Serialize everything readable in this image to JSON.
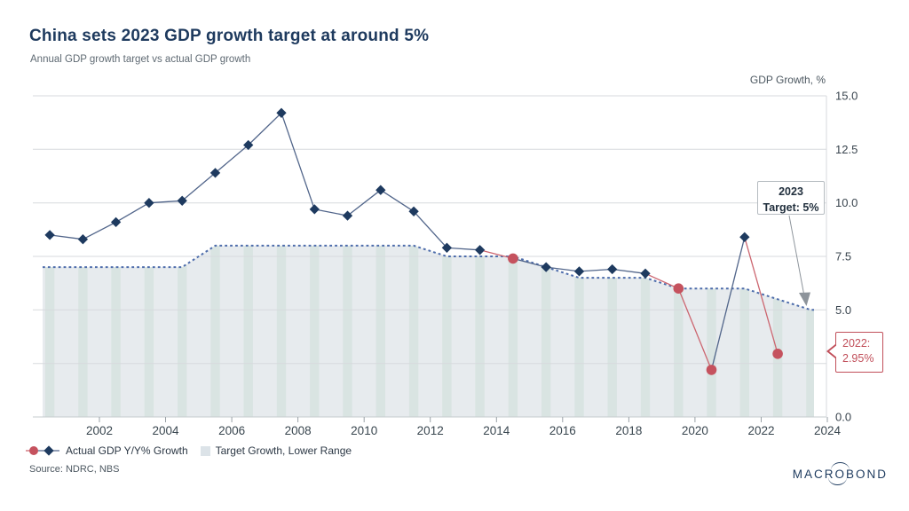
{
  "header": {
    "title": "China sets 2023 GDP growth target at around 5%",
    "subtitle": "Annual GDP growth target vs actual GDP growth"
  },
  "chart_data": {
    "type": "line",
    "title": "China sets 2023 GDP growth target at around 5%",
    "ylabel": "GDP Growth, %",
    "xlabel": "",
    "ylim": [
      0,
      15
    ],
    "grid": true,
    "legend_position": "bottom",
    "yticks": [
      0,
      2.5,
      5,
      7.5,
      10,
      12.5,
      15
    ],
    "ytick_labels": [
      "0.0",
      "2.5",
      "5.0",
      "7.5",
      "10.0",
      "12.5",
      "15.0"
    ],
    "xticks": [
      2002,
      2004,
      2006,
      2008,
      2010,
      2012,
      2014,
      2016,
      2018,
      2020,
      2022,
      2024
    ],
    "series": [
      {
        "name": "Actual GDP Y/Y% Growth",
        "type": "line+markers",
        "line_color": "#51658a",
        "below_target_line_color": "#cc6670",
        "marker_diamond_color": "#1e3a5f",
        "marker_circle_color": "#c5525e",
        "x": [
          2000,
          2001,
          2002,
          2003,
          2004,
          2005,
          2006,
          2007,
          2008,
          2009,
          2010,
          2011,
          2012,
          2013,
          2014,
          2015,
          2016,
          2017,
          2018,
          2019,
          2020,
          2021,
          2022
        ],
        "values": [
          8.5,
          8.3,
          9.1,
          10.0,
          10.1,
          11.4,
          12.7,
          14.2,
          9.7,
          9.4,
          10.6,
          9.6,
          7.9,
          7.8,
          7.4,
          7.0,
          6.8,
          6.9,
          6.7,
          6.0,
          2.2,
          8.4,
          2.95
        ],
        "below_target_years": [
          2014,
          2019,
          2020,
          2022
        ]
      },
      {
        "name": "Target Growth, Lower Range",
        "type": "area+dotted-line",
        "fill_color": "#e7ebee",
        "stripe_color": "#d9e4e2",
        "line_color": "#4d6cab",
        "x": [
          2000,
          2001,
          2002,
          2003,
          2004,
          2005,
          2006,
          2007,
          2008,
          2009,
          2010,
          2011,
          2012,
          2013,
          2014,
          2015,
          2016,
          2017,
          2018,
          2019,
          2020,
          2021,
          2022,
          2023
        ],
        "values": [
          7,
          7,
          7,
          7,
          7,
          8,
          8,
          8,
          8,
          8,
          8,
          8,
          7.5,
          7.5,
          7.5,
          7,
          6.5,
          6.5,
          6.5,
          6,
          6,
          6,
          5.5,
          5
        ]
      }
    ],
    "annotations": [
      {
        "id": "target-2023",
        "line1": "2023",
        "line2": "Target: 5%",
        "points_to": {
          "year": 2023,
          "value": 5
        }
      },
      {
        "id": "actual-2022",
        "line1": "2022:",
        "line2": "2.95%",
        "points_to": {
          "year": 2022,
          "value": 2.95
        }
      }
    ]
  },
  "source": "Source: NDRC, NBS",
  "logo": {
    "left": "MACR",
    "o": "O",
    "right": "BOND"
  }
}
